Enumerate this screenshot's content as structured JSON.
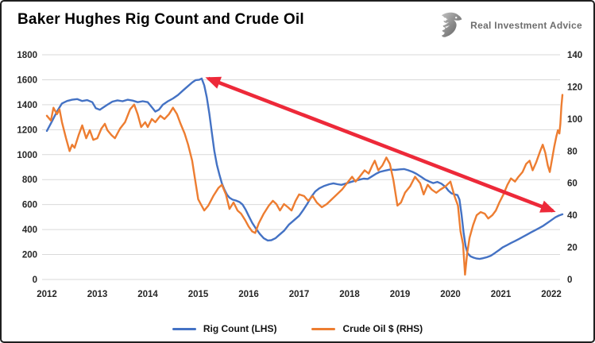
{
  "header": {
    "title": "Baker Hughes Rig Count and Crude Oil",
    "brand": {
      "name": "Real Investment Advice",
      "icon": "eagle-icon"
    }
  },
  "colors": {
    "rig_count_line": "#4472C4",
    "crude_oil_line": "#ED7D31",
    "annotation_arrow": "#ED2939",
    "grid": "#d9d9d9",
    "axis_text": "#262626",
    "border": "#1f1f1f",
    "background": "#ffffff",
    "brand_text": "#6d6d6d"
  },
  "chart_data": {
    "type": "line",
    "title": "Baker Hughes Rig Count and Crude Oil",
    "grid": true,
    "legend_position": "bottom",
    "x_axis": {
      "ticks": [
        2012,
        2013,
        2014,
        2015,
        2016,
        2017,
        2018,
        2019,
        2020,
        2021,
        2022
      ],
      "range": [
        2012,
        2022.3
      ]
    },
    "left_axis": {
      "label": "Rig Count",
      "min": 0,
      "max": 1800,
      "step": 200,
      "ticks": [
        0,
        200,
        400,
        600,
        800,
        1000,
        1200,
        1400,
        1600,
        1800
      ]
    },
    "right_axis": {
      "label": "Crude Oil $",
      "min": 0,
      "max": 140,
      "step": 20,
      "ticks": [
        0,
        20,
        40,
        60,
        80,
        100,
        120,
        140
      ]
    },
    "series": [
      {
        "name": "Rig Count (LHS)",
        "axis": "left",
        "color": "#4472C4",
        "points": [
          [
            2012.0,
            1190
          ],
          [
            2012.1,
            1265
          ],
          [
            2012.2,
            1345
          ],
          [
            2012.3,
            1410
          ],
          [
            2012.4,
            1430
          ],
          [
            2012.5,
            1440
          ],
          [
            2012.6,
            1445
          ],
          [
            2012.7,
            1430
          ],
          [
            2012.8,
            1437
          ],
          [
            2012.9,
            1420
          ],
          [
            2012.97,
            1372
          ],
          [
            2013.05,
            1360
          ],
          [
            2013.12,
            1378
          ],
          [
            2013.2,
            1400
          ],
          [
            2013.3,
            1425
          ],
          [
            2013.4,
            1435
          ],
          [
            2013.5,
            1428
          ],
          [
            2013.6,
            1440
          ],
          [
            2013.7,
            1433
          ],
          [
            2013.8,
            1420
          ],
          [
            2013.9,
            1428
          ],
          [
            2014.0,
            1420
          ],
          [
            2014.08,
            1380
          ],
          [
            2014.15,
            1345
          ],
          [
            2014.22,
            1360
          ],
          [
            2014.3,
            1400
          ],
          [
            2014.4,
            1428
          ],
          [
            2014.5,
            1450
          ],
          [
            2014.6,
            1478
          ],
          [
            2014.7,
            1515
          ],
          [
            2014.8,
            1550
          ],
          [
            2014.88,
            1578
          ],
          [
            2014.95,
            1597
          ],
          [
            2015.02,
            1600
          ],
          [
            2015.07,
            1610
          ],
          [
            2015.12,
            1555
          ],
          [
            2015.17,
            1460
          ],
          [
            2015.22,
            1330
          ],
          [
            2015.27,
            1180
          ],
          [
            2015.32,
            1030
          ],
          [
            2015.37,
            920
          ],
          [
            2015.42,
            840
          ],
          [
            2015.47,
            770
          ],
          [
            2015.52,
            720
          ],
          [
            2015.57,
            680
          ],
          [
            2015.62,
            655
          ],
          [
            2015.68,
            640
          ],
          [
            2015.75,
            632
          ],
          [
            2015.82,
            620
          ],
          [
            2015.88,
            600
          ],
          [
            2015.94,
            560
          ],
          [
            2016.0,
            510
          ],
          [
            2016.07,
            455
          ],
          [
            2016.14,
            410
          ],
          [
            2016.22,
            365
          ],
          [
            2016.3,
            330
          ],
          [
            2016.38,
            312
          ],
          [
            2016.45,
            315
          ],
          [
            2016.53,
            330
          ],
          [
            2016.6,
            355
          ],
          [
            2016.7,
            390
          ],
          [
            2016.8,
            440
          ],
          [
            2016.9,
            475
          ],
          [
            2017.0,
            510
          ],
          [
            2017.08,
            555
          ],
          [
            2017.16,
            605
          ],
          [
            2017.24,
            660
          ],
          [
            2017.32,
            705
          ],
          [
            2017.4,
            730
          ],
          [
            2017.5,
            750
          ],
          [
            2017.6,
            763
          ],
          [
            2017.68,
            770
          ],
          [
            2017.76,
            763
          ],
          [
            2017.84,
            758
          ],
          [
            2017.92,
            768
          ],
          [
            2018.0,
            778
          ],
          [
            2018.1,
            790
          ],
          [
            2018.2,
            800
          ],
          [
            2018.28,
            808
          ],
          [
            2018.36,
            805
          ],
          [
            2018.44,
            825
          ],
          [
            2018.52,
            845
          ],
          [
            2018.6,
            862
          ],
          [
            2018.7,
            872
          ],
          [
            2018.8,
            880
          ],
          [
            2018.9,
            878
          ],
          [
            2019.0,
            882
          ],
          [
            2019.08,
            885
          ],
          [
            2019.16,
            875
          ],
          [
            2019.25,
            862
          ],
          [
            2019.33,
            845
          ],
          [
            2019.42,
            822
          ],
          [
            2019.5,
            800
          ],
          [
            2019.58,
            785
          ],
          [
            2019.66,
            772
          ],
          [
            2019.74,
            782
          ],
          [
            2019.82,
            768
          ],
          [
            2019.9,
            742
          ],
          [
            2019.96,
            712
          ],
          [
            2020.02,
            690
          ],
          [
            2020.08,
            682
          ],
          [
            2020.14,
            676
          ],
          [
            2020.18,
            640
          ],
          [
            2020.22,
            520
          ],
          [
            2020.26,
            380
          ],
          [
            2020.3,
            270
          ],
          [
            2020.34,
            210
          ],
          [
            2020.4,
            185
          ],
          [
            2020.46,
            175
          ],
          [
            2020.52,
            168
          ],
          [
            2020.58,
            165
          ],
          [
            2020.64,
            170
          ],
          [
            2020.72,
            178
          ],
          [
            2020.8,
            190
          ],
          [
            2020.88,
            212
          ],
          [
            2020.96,
            235
          ],
          [
            2021.04,
            258
          ],
          [
            2021.12,
            275
          ],
          [
            2021.2,
            292
          ],
          [
            2021.28,
            308
          ],
          [
            2021.36,
            325
          ],
          [
            2021.44,
            342
          ],
          [
            2021.52,
            360
          ],
          [
            2021.6,
            378
          ],
          [
            2021.68,
            395
          ],
          [
            2021.76,
            412
          ],
          [
            2021.84,
            430
          ],
          [
            2021.92,
            452
          ],
          [
            2022.0,
            475
          ],
          [
            2022.08,
            498
          ],
          [
            2022.15,
            512
          ],
          [
            2022.22,
            522
          ]
        ]
      },
      {
        "name": "Crude Oil $ (RHS)",
        "axis": "right",
        "color": "#ED7D31",
        "points": [
          [
            2012.0,
            102
          ],
          [
            2012.08,
            99
          ],
          [
            2012.13,
            107
          ],
          [
            2012.2,
            103
          ],
          [
            2012.25,
            106
          ],
          [
            2012.3,
            98
          ],
          [
            2012.38,
            88
          ],
          [
            2012.45,
            80
          ],
          [
            2012.5,
            84
          ],
          [
            2012.55,
            82
          ],
          [
            2012.63,
            90
          ],
          [
            2012.7,
            96
          ],
          [
            2012.78,
            88
          ],
          [
            2012.85,
            93
          ],
          [
            2012.92,
            87
          ],
          [
            2013.0,
            88
          ],
          [
            2013.08,
            94
          ],
          [
            2013.15,
            97
          ],
          [
            2013.2,
            93
          ],
          [
            2013.28,
            90
          ],
          [
            2013.35,
            88
          ],
          [
            2013.45,
            94
          ],
          [
            2013.55,
            98
          ],
          [
            2013.65,
            106
          ],
          [
            2013.73,
            109
          ],
          [
            2013.8,
            103
          ],
          [
            2013.87,
            95
          ],
          [
            2013.95,
            98
          ],
          [
            2014.0,
            95
          ],
          [
            2014.08,
            100
          ],
          [
            2014.15,
            98
          ],
          [
            2014.25,
            102
          ],
          [
            2014.33,
            100
          ],
          [
            2014.42,
            103
          ],
          [
            2014.5,
            107
          ],
          [
            2014.58,
            103
          ],
          [
            2014.65,
            97
          ],
          [
            2014.73,
            91
          ],
          [
            2014.8,
            84
          ],
          [
            2014.88,
            74
          ],
          [
            2014.95,
            60
          ],
          [
            2015.0,
            50
          ],
          [
            2015.05,
            47
          ],
          [
            2015.12,
            43
          ],
          [
            2015.2,
            46
          ],
          [
            2015.3,
            52
          ],
          [
            2015.4,
            57
          ],
          [
            2015.47,
            59
          ],
          [
            2015.55,
            53
          ],
          [
            2015.62,
            44
          ],
          [
            2015.7,
            48
          ],
          [
            2015.78,
            43
          ],
          [
            2015.85,
            41
          ],
          [
            2015.93,
            37
          ],
          [
            2016.0,
            33
          ],
          [
            2016.07,
            30
          ],
          [
            2016.13,
            29
          ],
          [
            2016.2,
            35
          ],
          [
            2016.3,
            41
          ],
          [
            2016.4,
            46
          ],
          [
            2016.48,
            49
          ],
          [
            2016.55,
            47
          ],
          [
            2016.62,
            43
          ],
          [
            2016.7,
            47
          ],
          [
            2016.78,
            45
          ],
          [
            2016.85,
            43
          ],
          [
            2016.93,
            49
          ],
          [
            2017.0,
            53
          ],
          [
            2017.1,
            52
          ],
          [
            2017.18,
            49
          ],
          [
            2017.27,
            52
          ],
          [
            2017.35,
            48
          ],
          [
            2017.45,
            45
          ],
          [
            2017.55,
            47
          ],
          [
            2017.65,
            50
          ],
          [
            2017.75,
            53
          ],
          [
            2017.85,
            56
          ],
          [
            2017.95,
            60
          ],
          [
            2018.05,
            64
          ],
          [
            2018.12,
            61
          ],
          [
            2018.2,
            64
          ],
          [
            2018.3,
            68
          ],
          [
            2018.38,
            66
          ],
          [
            2018.45,
            71
          ],
          [
            2018.5,
            74
          ],
          [
            2018.57,
            68
          ],
          [
            2018.65,
            71
          ],
          [
            2018.73,
            76
          ],
          [
            2018.8,
            72
          ],
          [
            2018.87,
            62
          ],
          [
            2018.95,
            46
          ],
          [
            2019.02,
            48
          ],
          [
            2019.1,
            54
          ],
          [
            2019.2,
            58
          ],
          [
            2019.3,
            64
          ],
          [
            2019.4,
            60
          ],
          [
            2019.47,
            53
          ],
          [
            2019.55,
            59
          ],
          [
            2019.63,
            56
          ],
          [
            2019.72,
            54
          ],
          [
            2019.8,
            56
          ],
          [
            2019.9,
            58
          ],
          [
            2020.0,
            61
          ],
          [
            2020.08,
            52
          ],
          [
            2020.15,
            46
          ],
          [
            2020.2,
            30
          ],
          [
            2020.25,
            22
          ],
          [
            2020.29,
            3
          ],
          [
            2020.33,
            16
          ],
          [
            2020.38,
            26
          ],
          [
            2020.45,
            34
          ],
          [
            2020.52,
            40
          ],
          [
            2020.6,
            42
          ],
          [
            2020.68,
            41
          ],
          [
            2020.75,
            38
          ],
          [
            2020.83,
            40
          ],
          [
            2020.9,
            43
          ],
          [
            2020.97,
            48
          ],
          [
            2021.05,
            53
          ],
          [
            2021.13,
            59
          ],
          [
            2021.2,
            63
          ],
          [
            2021.28,
            61
          ],
          [
            2021.35,
            64
          ],
          [
            2021.43,
            67
          ],
          [
            2021.5,
            72
          ],
          [
            2021.57,
            74
          ],
          [
            2021.63,
            68
          ],
          [
            2021.7,
            73
          ],
          [
            2021.78,
            80
          ],
          [
            2021.83,
            84
          ],
          [
            2021.88,
            79
          ],
          [
            2021.93,
            71
          ],
          [
            2021.97,
            67
          ],
          [
            2022.02,
            76
          ],
          [
            2022.06,
            83
          ],
          [
            2022.1,
            89
          ],
          [
            2022.13,
            93
          ],
          [
            2022.16,
            91
          ],
          [
            2022.18,
            97
          ],
          [
            2022.2,
            108
          ],
          [
            2022.22,
            115
          ]
        ]
      }
    ],
    "annotation": {
      "type": "double-headed-arrow",
      "color": "#ED2939",
      "from": {
        "x": 2015.2,
        "y_left": 1610
      },
      "to": {
        "x": 2022.03,
        "y_left": 550
      }
    }
  }
}
